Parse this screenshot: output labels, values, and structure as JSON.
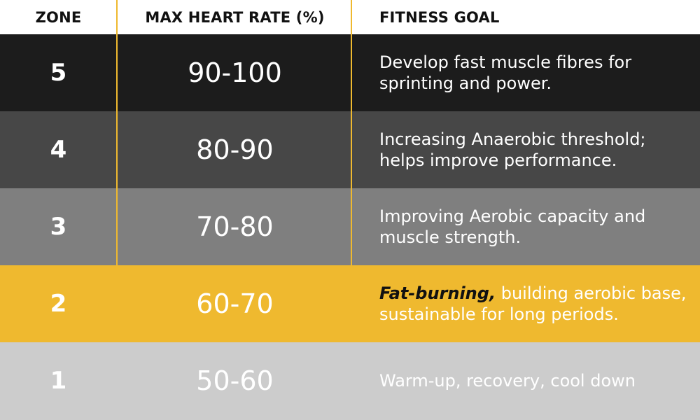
{
  "header": {
    "zone": "ZONE",
    "max_heart_rate": "MAX HEART RATE (%)",
    "fitness_goal": "FITNESS GOAL"
  },
  "rows": [
    {
      "zone": "5",
      "rate": "90-100",
      "goal_emphasis": "",
      "goal": "Develop fast muscle fibres for sprinting and power.",
      "bg": "#1c1c1c",
      "text_color": "#ffffff"
    },
    {
      "zone": "4",
      "rate": "80-90",
      "goal_emphasis": "",
      "goal": "Increasing Anaerobic threshold; helps improve performance.",
      "bg": "#474747",
      "text_color": "#ffffff"
    },
    {
      "zone": "3",
      "rate": "70-80",
      "goal_emphasis": "",
      "goal": "Improving Aerobic capacity and muscle strength.",
      "bg": "#7f7f7f",
      "text_color": "#ffffff"
    },
    {
      "zone": "2",
      "rate": "60-70",
      "goal_emphasis": "Fat-burning,",
      "goal": " building aerobic base, sustainable for long periods.",
      "bg": "#efb92f",
      "text_color": "#ffffff"
    },
    {
      "zone": "1",
      "rate": "50-60",
      "goal_emphasis": "",
      "goal": "Warm-up, recovery, cool down",
      "bg": "#cccccc",
      "text_color": "#ffffff"
    }
  ],
  "colors": {
    "divider": "#efb92f",
    "header_text": "#111111",
    "emphasis_text": "#111111"
  }
}
